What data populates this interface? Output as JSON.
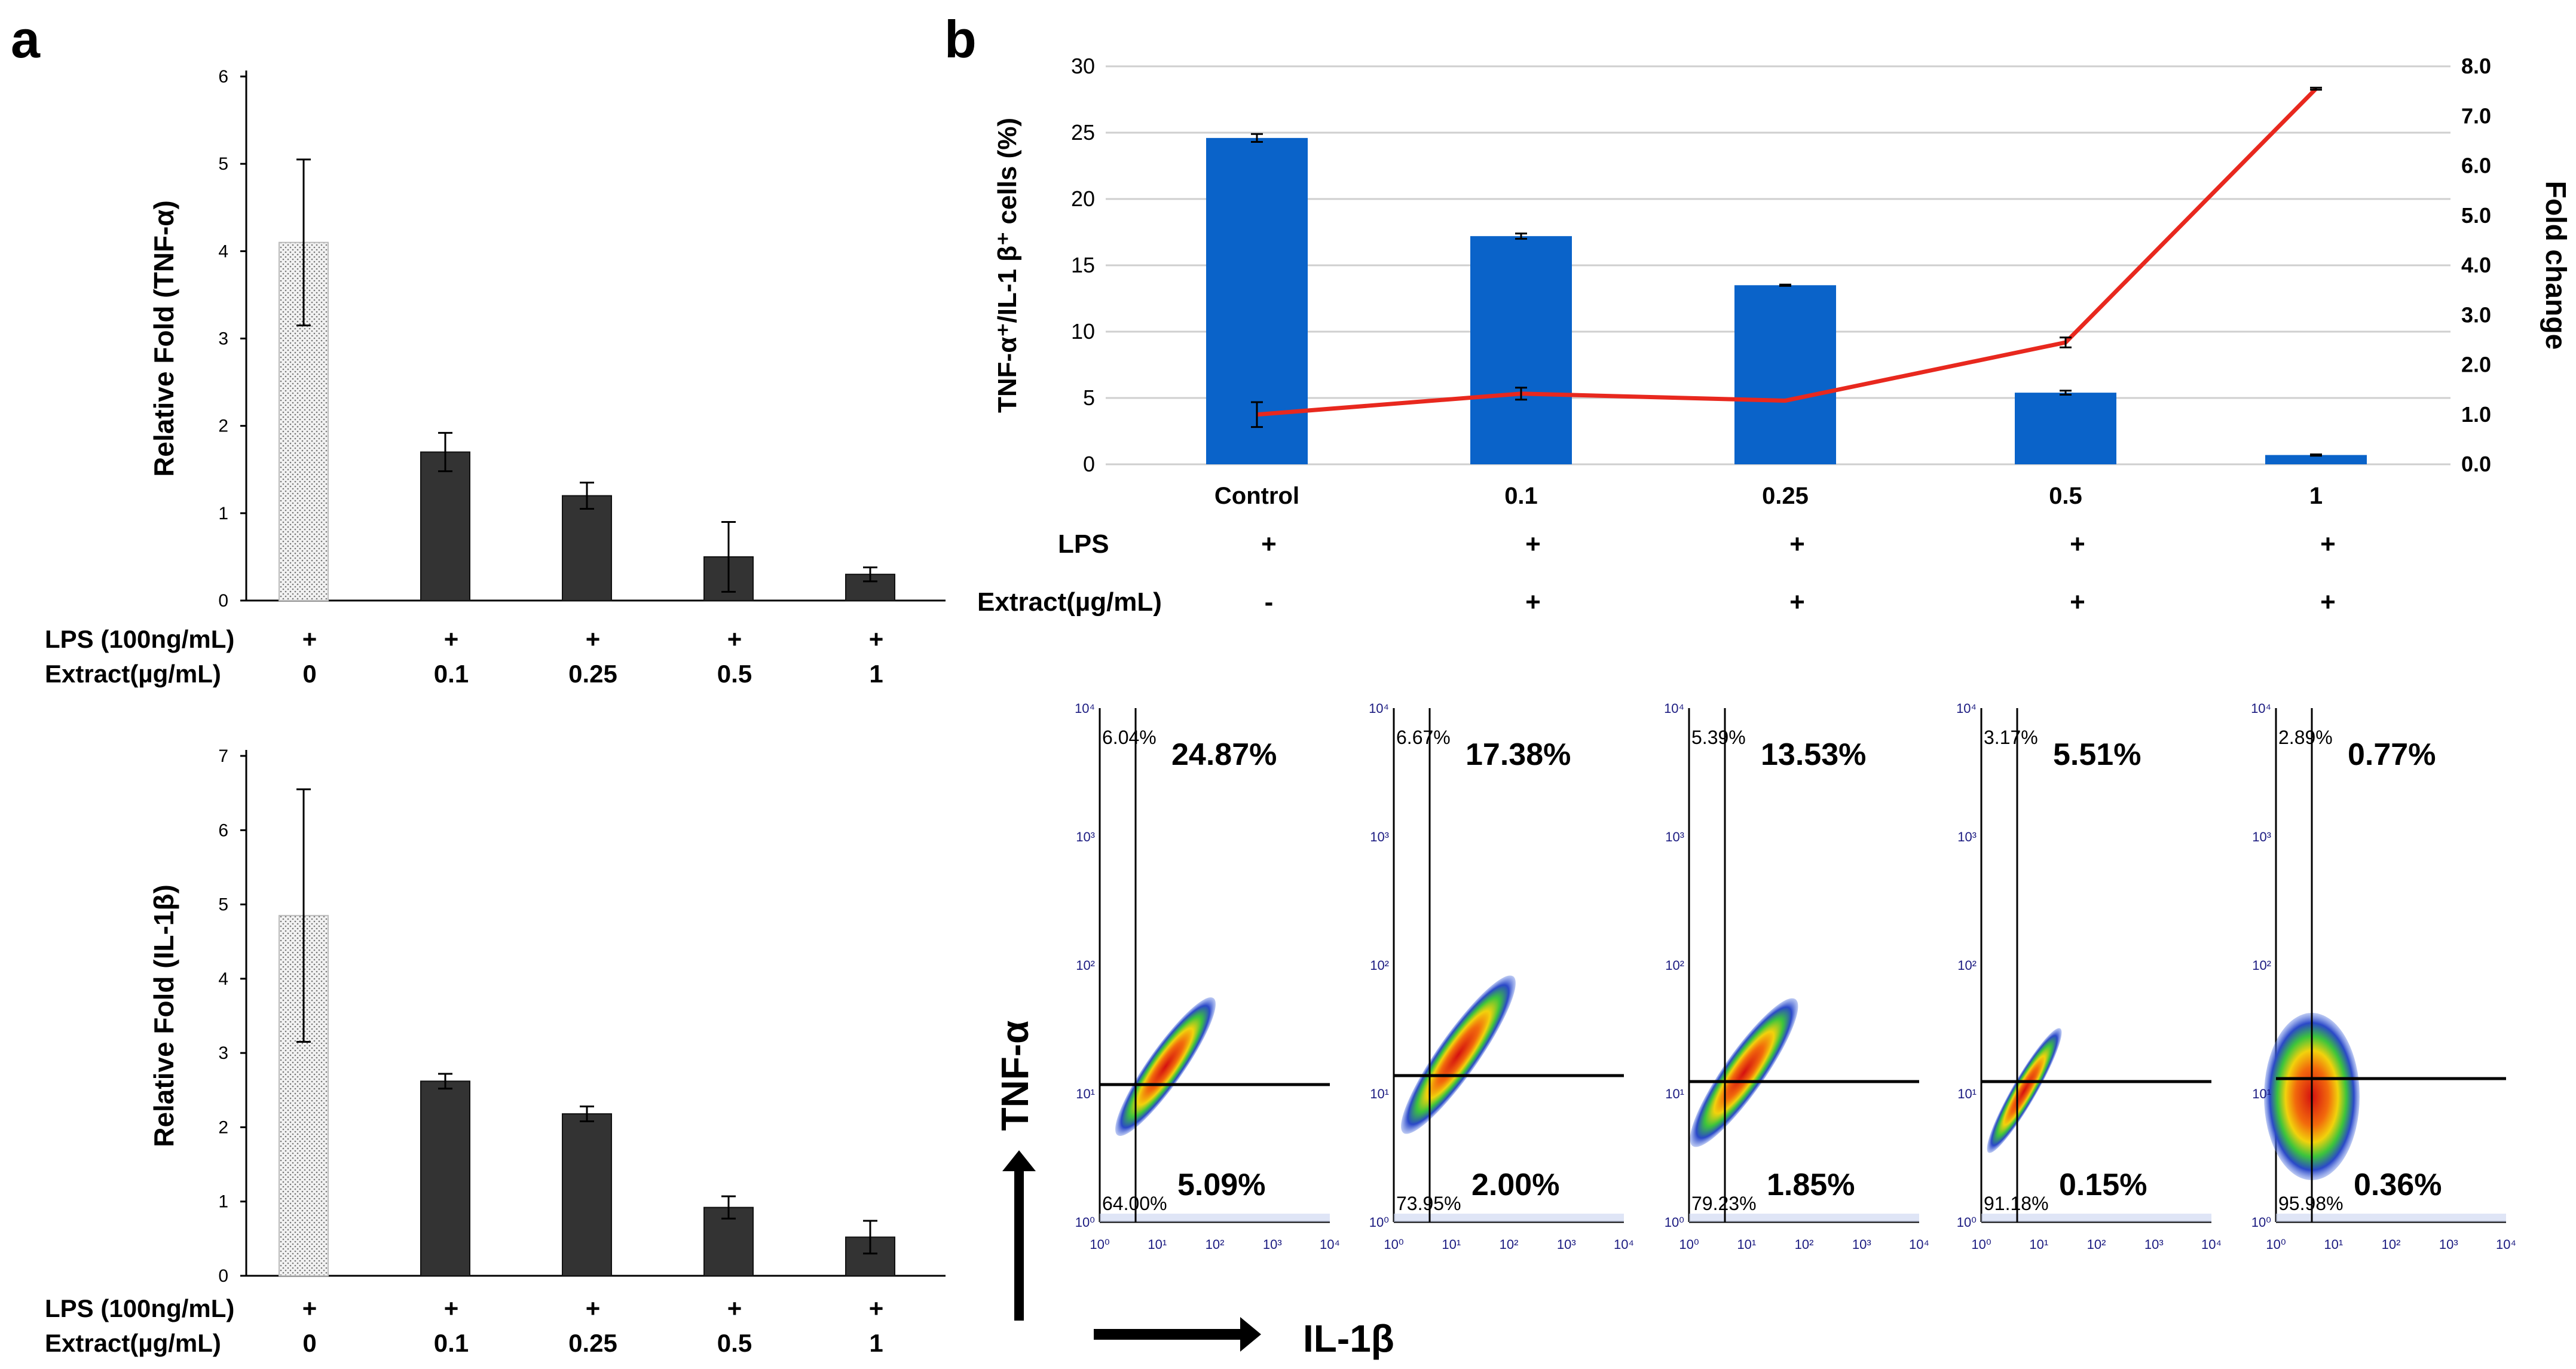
{
  "panel_a_label": "a",
  "panel_b_label": "b",
  "chart_data": [
    {
      "id": "a_top",
      "type": "bar",
      "ylabel": "Relative Fold (TNF-α)",
      "categories": [
        "0",
        "0.1",
        "0.25",
        "0.5",
        "1"
      ],
      "values": [
        4.1,
        1.7,
        1.2,
        0.5,
        0.3
      ],
      "errors": [
        0.95,
        0.22,
        0.15,
        0.4,
        0.08
      ],
      "ylim": [
        0,
        6
      ],
      "yticks": [
        "0",
        "1",
        "2",
        "3",
        "4",
        "5",
        "6"
      ],
      "bar_colors": [
        "#d8d8d8",
        "#333333",
        "#333333",
        "#333333",
        "#333333"
      ],
      "lps_label": "LPS (100ng/mL)",
      "lps_row": [
        "+",
        "+",
        "+",
        "+",
        "+"
      ],
      "extract_label": "Extract(µg/mL)",
      "extract_row": [
        "0",
        "0.1",
        "0.25",
        "0.5",
        "1"
      ]
    },
    {
      "id": "a_bottom",
      "type": "bar",
      "ylabel": "Relative Fold (IL-1β)",
      "categories": [
        "0",
        "0.1",
        "0.25",
        "0.5",
        "1"
      ],
      "values": [
        4.85,
        2.62,
        2.18,
        0.92,
        0.52
      ],
      "errors": [
        1.7,
        0.1,
        0.1,
        0.15,
        0.22
      ],
      "ylim": [
        0,
        7
      ],
      "yticks": [
        "0",
        "1",
        "2",
        "3",
        "4",
        "5",
        "6",
        "7"
      ],
      "bar_colors": [
        "#d8d8d8",
        "#333333",
        "#333333",
        "#333333",
        "#333333"
      ],
      "lps_label": "LPS (100ng/mL)",
      "lps_row": [
        "+",
        "+",
        "+",
        "+",
        "+"
      ],
      "extract_label": "Extract(µg/mL)",
      "extract_row": [
        "0",
        "0.1",
        "0.25",
        "0.5",
        "1"
      ]
    },
    {
      "id": "b_combo",
      "type": "bar",
      "ylabel": "TNF-α⁺/IL-1 β⁺ cells (%)",
      "y2label": "Fold change",
      "categories": [
        "Control",
        "0.1",
        "0.25",
        "0.5",
        "1"
      ],
      "bar_values": [
        24.6,
        17.2,
        13.5,
        5.4,
        0.7
      ],
      "bar_errors": [
        0.3,
        0.2,
        0.05,
        0.15,
        0.05
      ],
      "line_values": [
        1.0,
        1.42,
        1.28,
        2.45,
        7.55
      ],
      "line_errors": [
        0.25,
        0.12,
        0.0,
        0.1,
        0.02
      ],
      "ylim": [
        0,
        30
      ],
      "yticks": [
        "0",
        "5",
        "10",
        "15",
        "20",
        "25",
        "30"
      ],
      "y2lim": [
        0,
        8
      ],
      "y2ticks": [
        "0.0",
        "1.0",
        "2.0",
        "3.0",
        "4.0",
        "5.0",
        "6.0",
        "7.0",
        "8.0"
      ],
      "bar_color": "#0a63c9",
      "line_color": "#e8281e",
      "lps_label": "LPS",
      "lps_row": [
        "+",
        "+",
        "+",
        "+",
        "+"
      ],
      "extract_label": "Extract(µg/mL)",
      "extract_row": [
        "-",
        "+",
        "+",
        "+",
        "+"
      ]
    },
    {
      "id": "b_flow",
      "type": "scatter",
      "xlabel": "IL-1β",
      "ylabel": "TNF-α",
      "axis_ticks": [
        "10⁰",
        "10¹",
        "10²",
        "10³",
        "10⁴"
      ],
      "plots": [
        {
          "upper_left": "6.04%",
          "upper_right": "24.87%",
          "lower_left": "64.00%",
          "lower_right": "5.09%"
        },
        {
          "upper_left": "6.67%",
          "upper_right": "17.38%",
          "lower_left": "73.95%",
          "lower_right": "2.00%"
        },
        {
          "upper_left": "5.39%",
          "upper_right": "13.53%",
          "lower_left": "79.23%",
          "lower_right": "1.85%"
        },
        {
          "upper_left": "3.17%",
          "upper_right": "5.51%",
          "lower_left": "91.18%",
          "lower_right": "0.15%"
        },
        {
          "upper_left": "2.89%",
          "upper_right": "0.77%",
          "lower_left": "95.98%",
          "lower_right": "0.36%"
        }
      ]
    }
  ]
}
